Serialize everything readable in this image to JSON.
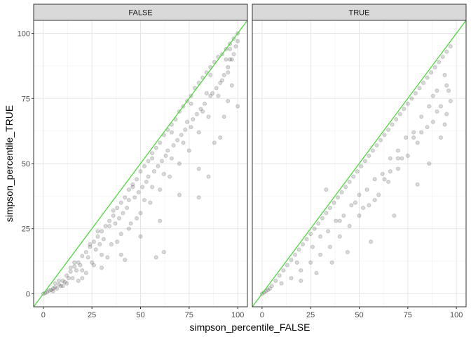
{
  "chart_data": {
    "type": "scatter",
    "xlabel": "simpson_percentile_FALSE",
    "ylabel": "simpson_percentile_TRUE",
    "xlim": [
      -5,
      105
    ],
    "ylim": [
      -5,
      105
    ],
    "x_ticks": [
      0,
      25,
      50,
      75,
      100
    ],
    "y_ticks": [
      0,
      25,
      50,
      75,
      100
    ],
    "x_tick_labels": [
      "0",
      "25",
      "50",
      "75",
      "100"
    ],
    "y_tick_labels": [
      "0",
      "25",
      "50",
      "75",
      "100"
    ],
    "grid": true,
    "legend": "none",
    "point_color": "#000000",
    "point_opacity": 0.15,
    "reference_line": {
      "slope": 1,
      "intercept": 0,
      "color": "#4cd93f"
    },
    "facets": [
      {
        "label": "FALSE",
        "points": [
          [
            0,
            0
          ],
          [
            1,
            0.3
          ],
          [
            2,
            0.8
          ],
          [
            3,
            1.2
          ],
          [
            4,
            1.5
          ],
          [
            5,
            2
          ],
          [
            6,
            2.5
          ],
          [
            8,
            3.5
          ],
          [
            10,
            5
          ],
          [
            12,
            7
          ],
          [
            14,
            8.5
          ],
          [
            16,
            10.5
          ],
          [
            18,
            12
          ],
          [
            20,
            14.5
          ],
          [
            22,
            16
          ],
          [
            24,
            18
          ],
          [
            26,
            20
          ],
          [
            28,
            22
          ],
          [
            30,
            24
          ],
          [
            32,
            26
          ],
          [
            34,
            28
          ],
          [
            36,
            30
          ],
          [
            38,
            33
          ],
          [
            40,
            35
          ],
          [
            42,
            37
          ],
          [
            44,
            40
          ],
          [
            46,
            42
          ],
          [
            48,
            44
          ],
          [
            50,
            47
          ],
          [
            52,
            49
          ],
          [
            54,
            51
          ],
          [
            56,
            54
          ],
          [
            58,
            56
          ],
          [
            60,
            58
          ],
          [
            62,
            61
          ],
          [
            64,
            63
          ],
          [
            66,
            65
          ],
          [
            68,
            67
          ],
          [
            70,
            70
          ],
          [
            72,
            72
          ],
          [
            74,
            74
          ],
          [
            76,
            76
          ],
          [
            78,
            79
          ],
          [
            80,
            81
          ],
          [
            82,
            83
          ],
          [
            84,
            85
          ],
          [
            86,
            87
          ],
          [
            88,
            89
          ],
          [
            90,
            91
          ],
          [
            92,
            92
          ],
          [
            94,
            94
          ],
          [
            96,
            96
          ],
          [
            98,
            98
          ],
          [
            100,
            100
          ],
          [
            10,
            3
          ],
          [
            15,
            6
          ],
          [
            20,
            9
          ],
          [
            25,
            12
          ],
          [
            30,
            15
          ],
          [
            35,
            19
          ],
          [
            40,
            23
          ],
          [
            45,
            27
          ],
          [
            50,
            31
          ],
          [
            55,
            35
          ],
          [
            60,
            40
          ],
          [
            65,
            45
          ],
          [
            70,
            50
          ],
          [
            75,
            55
          ],
          [
            80,
            62
          ],
          [
            85,
            68
          ],
          [
            90,
            76
          ],
          [
            95,
            85
          ],
          [
            98,
            92
          ],
          [
            100,
            97
          ],
          [
            20,
            6
          ],
          [
            30,
            10
          ],
          [
            40,
            15
          ],
          [
            50,
            22
          ],
          [
            60,
            28
          ],
          [
            70,
            38
          ],
          [
            80,
            48
          ],
          [
            88,
            58
          ],
          [
            93,
            68
          ],
          [
            97,
            80
          ],
          [
            42,
            13
          ],
          [
            58,
            14
          ],
          [
            62,
            16
          ],
          [
            80,
            37
          ],
          [
            85,
            45
          ],
          [
            91,
            60
          ],
          [
            95,
            74
          ],
          [
            100,
            72
          ],
          [
            12,
            4
          ],
          [
            18,
            5
          ],
          [
            22,
            8
          ],
          [
            26,
            11
          ],
          [
            33,
            14
          ],
          [
            38,
            20
          ],
          [
            44,
            25
          ],
          [
            48,
            29
          ],
          [
            52,
            36
          ],
          [
            56,
            41
          ],
          [
            62,
            46
          ],
          [
            66,
            52
          ],
          [
            72,
            58
          ],
          [
            76,
            64
          ],
          [
            82,
            70
          ],
          [
            86,
            76
          ],
          [
            92,
            82
          ],
          [
            96,
            90
          ],
          [
            99,
            95
          ],
          [
            5,
            1
          ],
          [
            7,
            2
          ],
          [
            9,
            3
          ],
          [
            11,
            4.5
          ],
          [
            13,
            6
          ],
          [
            17,
            9
          ],
          [
            19,
            11
          ],
          [
            23,
            14
          ],
          [
            27,
            17
          ],
          [
            29,
            19
          ],
          [
            31,
            21
          ],
          [
            37,
            27
          ],
          [
            39,
            29
          ],
          [
            41,
            31
          ],
          [
            43,
            33
          ],
          [
            47,
            37
          ],
          [
            49,
            39
          ],
          [
            51,
            41
          ],
          [
            53,
            43
          ],
          [
            57,
            47
          ],
          [
            59,
            49
          ],
          [
            61,
            51
          ],
          [
            63,
            53
          ],
          [
            67,
            57
          ],
          [
            69,
            59
          ],
          [
            71,
            61
          ],
          [
            73,
            63
          ],
          [
            77,
            67
          ],
          [
            79,
            69
          ],
          [
            81,
            71
          ],
          [
            83,
            73
          ],
          [
            87,
            77
          ],
          [
            89,
            79
          ],
          [
            91,
            81
          ],
          [
            93,
            84
          ],
          [
            95,
            87
          ],
          [
            97,
            90
          ],
          [
            8,
            5
          ],
          [
            14,
            10
          ],
          [
            24,
            19
          ],
          [
            34,
            26
          ],
          [
            44,
            36
          ],
          [
            54,
            45
          ],
          [
            64,
            55
          ],
          [
            74,
            66
          ],
          [
            84,
            77
          ],
          [
            94,
            90
          ],
          [
            6,
            4
          ],
          [
            16,
            12
          ],
          [
            28,
            24
          ],
          [
            36,
            32
          ],
          [
            46,
            41
          ],
          [
            56,
            52
          ],
          [
            66,
            62
          ],
          [
            76,
            73
          ],
          [
            86,
            84
          ],
          [
            96,
            94
          ]
        ]
      },
      {
        "label": "TRUE",
        "points": [
          [
            0,
            0
          ],
          [
            1,
            0.5
          ],
          [
            2,
            1
          ],
          [
            3,
            1.5
          ],
          [
            4,
            2
          ],
          [
            5,
            3
          ],
          [
            7,
            5
          ],
          [
            9,
            7
          ],
          [
            11,
            9
          ],
          [
            13,
            11
          ],
          [
            15,
            13
          ],
          [
            17,
            15
          ],
          [
            19,
            17
          ],
          [
            21,
            19
          ],
          [
            23,
            21
          ],
          [
            25,
            23
          ],
          [
            27,
            25
          ],
          [
            29,
            27
          ],
          [
            31,
            29
          ],
          [
            33,
            31
          ],
          [
            35,
            33
          ],
          [
            37,
            35
          ],
          [
            39,
            37
          ],
          [
            41,
            39
          ],
          [
            43,
            41
          ],
          [
            45,
            43
          ],
          [
            47,
            45
          ],
          [
            49,
            47
          ],
          [
            51,
            49
          ],
          [
            53,
            51
          ],
          [
            55,
            53
          ],
          [
            57,
            55
          ],
          [
            59,
            57
          ],
          [
            61,
            59
          ],
          [
            63,
            61
          ],
          [
            65,
            63
          ],
          [
            67,
            65
          ],
          [
            69,
            67
          ],
          [
            71,
            69
          ],
          [
            73,
            71
          ],
          [
            75,
            73
          ],
          [
            77,
            75
          ],
          [
            79,
            77
          ],
          [
            81,
            79
          ],
          [
            83,
            81
          ],
          [
            85,
            83
          ],
          [
            87,
            85
          ],
          [
            89,
            87
          ],
          [
            91,
            89
          ],
          [
            93,
            91
          ],
          [
            95,
            93
          ],
          [
            97,
            95
          ],
          [
            10,
            4
          ],
          [
            15,
            6
          ],
          [
            20,
            9
          ],
          [
            25,
            12
          ],
          [
            30,
            15
          ],
          [
            35,
            18
          ],
          [
            40,
            22
          ],
          [
            45,
            26
          ],
          [
            50,
            30
          ],
          [
            55,
            34
          ],
          [
            60,
            38
          ],
          [
            65,
            43
          ],
          [
            70,
            48
          ],
          [
            75,
            53
          ],
          [
            80,
            58
          ],
          [
            85,
            64
          ],
          [
            90,
            70
          ],
          [
            95,
            80
          ],
          [
            33,
            40
          ],
          [
            40,
            28
          ],
          [
            48,
            35
          ],
          [
            52,
            33
          ],
          [
            58,
            36
          ],
          [
            63,
            44
          ],
          [
            66,
            47
          ],
          [
            70,
            55
          ],
          [
            72,
            52
          ],
          [
            78,
            60
          ],
          [
            82,
            62
          ],
          [
            88,
            66
          ],
          [
            92,
            72
          ],
          [
            95,
            69
          ],
          [
            97,
            74
          ],
          [
            96,
            78
          ],
          [
            20,
            5
          ],
          [
            28,
            8
          ],
          [
            36,
            12
          ],
          [
            44,
            16
          ],
          [
            56,
            20
          ],
          [
            68,
            30
          ],
          [
            80,
            42
          ],
          [
            86,
            50
          ],
          [
            92,
            60
          ],
          [
            94,
            65
          ],
          [
            30,
            22
          ],
          [
            38,
            28
          ],
          [
            46,
            34
          ],
          [
            54,
            40
          ],
          [
            62,
            46
          ],
          [
            70,
            52
          ],
          [
            78,
            62
          ],
          [
            86,
            72
          ],
          [
            90,
            78
          ],
          [
            94,
            84
          ],
          [
            18,
            12
          ],
          [
            26,
            18
          ],
          [
            34,
            24
          ],
          [
            42,
            30
          ],
          [
            50,
            38
          ],
          [
            58,
            44
          ],
          [
            66,
            52
          ],
          [
            74,
            60
          ],
          [
            82,
            68
          ],
          [
            88,
            76
          ]
        ]
      }
    ]
  }
}
